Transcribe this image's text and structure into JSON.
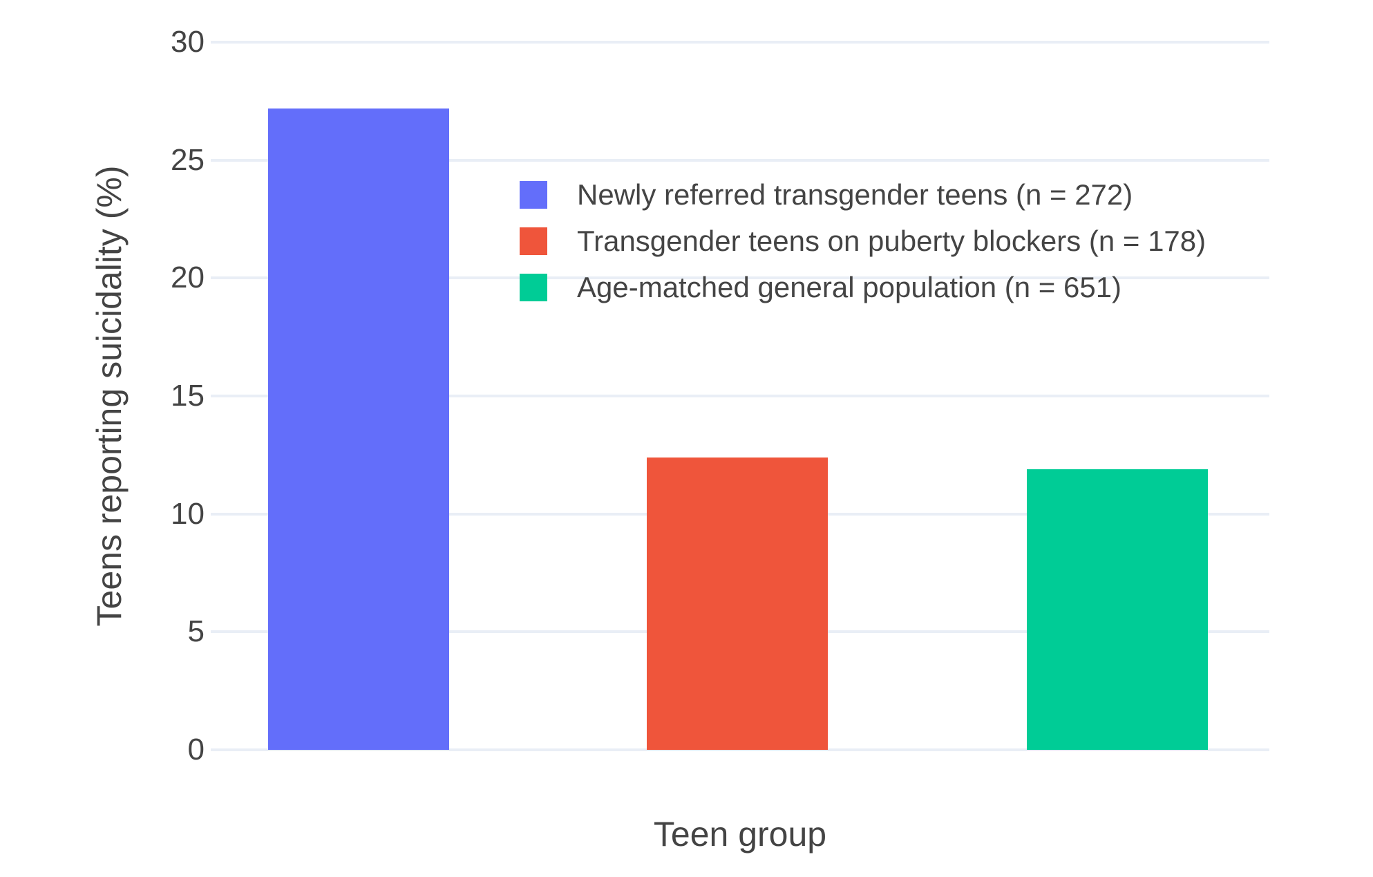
{
  "chart_data": {
    "type": "bar",
    "title": "",
    "xlabel": "Teen group",
    "ylabel": "Teens reporting suicidality (%)",
    "categories": [
      "Newly referred transgender teens (n = 272)",
      "Transgender teens on puberty blockers (n = 178)",
      "Age-matched general population (n = 651)"
    ],
    "values": [
      27.2,
      12.4,
      11.9
    ],
    "bar_colors": [
      "#636EFA",
      "#EF553B",
      "#00CC96"
    ],
    "ylim": [
      0,
      30
    ],
    "yticks": [
      0,
      5,
      10,
      15,
      20,
      25,
      30
    ],
    "grid": true,
    "legend": {
      "position": "inside-top-center",
      "items": [
        {
          "label": "Newly referred transgender teens (n = 272)",
          "color": "#636EFA"
        },
        {
          "label": "Transgender teens on puberty blockers (n = 178)",
          "color": "#EF553B"
        },
        {
          "label": "Age-matched general population (n = 651)",
          "color": "#00CC96"
        }
      ]
    },
    "colors": {
      "grid": "#E9EEF6",
      "text": "#444444",
      "background": "#FFFFFF"
    }
  }
}
